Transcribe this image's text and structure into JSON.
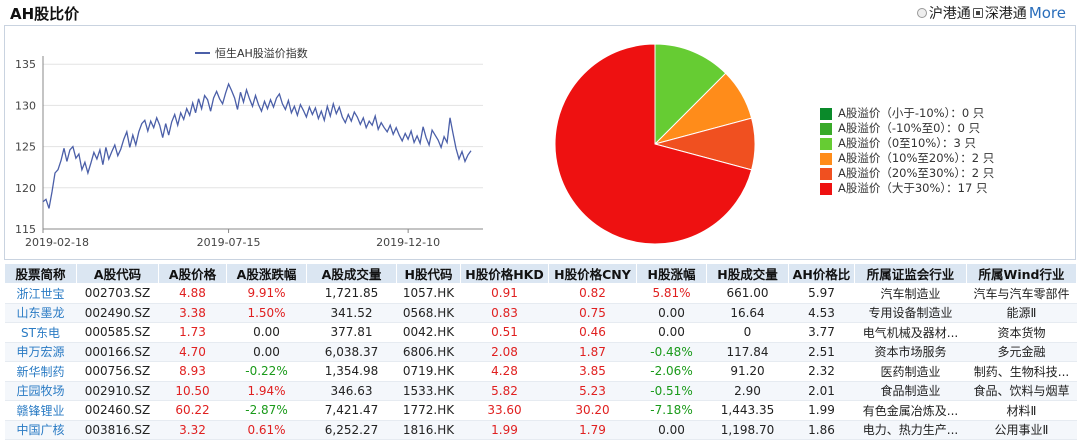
{
  "header": {
    "title": "AH股比价",
    "radio_options": [
      {
        "label": "沪港通",
        "selected": false
      },
      {
        "label": "深港通",
        "selected": true
      }
    ],
    "more_label": "More"
  },
  "chart_data": [
    {
      "type": "line",
      "series": [
        {
          "name": "恒生AH股溢价指数"
        }
      ],
      "x_ticks": [
        "2019-02-18",
        "2019-07-15",
        "2019-12-10"
      ],
      "y_ticks": [
        115,
        120,
        125,
        130,
        135
      ],
      "ylim": [
        115,
        136
      ],
      "grid": true,
      "legend_position": "top",
      "colors": {
        "line": "#4b5fa8",
        "grid": "#e3e3e3"
      },
      "points": [
        118.3,
        118.6,
        117.5,
        119.5,
        121.8,
        122.2,
        123.3,
        124.8,
        123.2,
        124.6,
        125.0,
        123.6,
        124.1,
        122.2,
        123.1,
        121.8,
        123.0,
        124.3,
        123.5,
        124.6,
        122.8,
        124.9,
        123.5,
        124.4,
        125.2,
        123.9,
        124.7,
        125.9,
        126.8,
        124.9,
        126.4,
        125.2,
        126.8,
        127.8,
        128.2,
        126.9,
        128.1,
        127.3,
        128.5,
        127.6,
        126.1,
        127.8,
        126.4,
        128.0,
        128.9,
        127.6,
        129.1,
        128.3,
        129.6,
        128.8,
        130.3,
        129.1,
        130.8,
        129.6,
        131.2,
        130.7,
        129.3,
        130.9,
        131.7,
        130.8,
        130.2,
        131.5,
        132.6,
        131.8,
        130.9,
        129.5,
        131.6,
        130.4,
        131.9,
        130.8,
        129.9,
        131.2,
        130.1,
        129.3,
        130.5,
        129.6,
        130.7,
        129.8,
        130.9,
        131.4,
        130.2,
        129.5,
        130.6,
        129.1,
        129.9,
        128.8,
        130.1,
        129.4,
        128.6,
        129.8,
        128.9,
        129.7,
        128.4,
        129.3,
        128.2,
        129.9,
        128.7,
        130.2,
        129.0,
        129.8,
        128.6,
        127.9,
        128.9,
        128.1,
        129.2,
        128.6,
        127.7,
        128.5,
        127.3,
        128.1,
        127.6,
        128.7,
        127.1,
        127.9,
        127.3,
        126.8,
        127.6,
        126.5,
        127.3,
        126.4,
        125.7,
        126.6,
        125.9,
        126.9,
        125.5,
        126.3,
        125.4,
        127.4,
        126.1,
        125.2,
        127.0,
        126.4,
        125.8,
        124.9,
        126.2,
        125.5,
        128.5,
        126.6,
        124.8,
        123.5,
        124.4,
        123.2,
        124.0,
        124.5
      ],
      "colors_pie": null
    },
    {
      "type": "pie",
      "categories": [
        "A股溢价（小于-10%）",
        "A股溢价（-10%至0）",
        "A股溢价（0至10%）",
        "A股溢价（10%至20%）",
        "A股溢价（20%至30%）",
        "A股溢价（大于30%）"
      ],
      "values": [
        0,
        0,
        3,
        2,
        2,
        17
      ],
      "colors": [
        "#0a8a2a",
        "#3aaa2a",
        "#66cc33",
        "#ff8c1a",
        "#f05020",
        "#ee1111"
      ],
      "legend": [
        {
          "label": "A股溢价（小于-10%）：0 只"
        },
        {
          "label": "A股溢价（-10%至0）：0 只"
        },
        {
          "label": "A股溢价（0至10%）：3 只"
        },
        {
          "label": "A股溢价（10%至20%）：2 只"
        },
        {
          "label": "A股溢价（20%至30%）：2 只"
        },
        {
          "label": "A股溢价（大于30%）：17 只"
        }
      ],
      "legend_position": "right"
    }
  ],
  "table": {
    "columns": [
      "股票简称",
      "A股代码",
      "A股价格",
      "A股涨跌幅",
      "A股成交量",
      "H股代码",
      "H股价格HKD",
      "H股价格CNY",
      "H股涨幅",
      "H股成交量",
      "AH价格比",
      "所属证监会行业",
      "所属Wind行业"
    ],
    "rows": [
      [
        "浙江世宝",
        "002703.SZ",
        "4.88",
        "9.91%",
        "1,721.85",
        "1057.HK",
        "0.91",
        "0.82",
        "5.81%",
        "661.00",
        "5.97",
        "汽车制造业",
        "汽车与汽车零部件"
      ],
      [
        "山东墨龙",
        "002490.SZ",
        "3.38",
        "1.50%",
        "341.52",
        "0568.HK",
        "0.83",
        "0.75",
        "0.00",
        "16.64",
        "4.53",
        "专用设备制造业",
        "能源Ⅱ"
      ],
      [
        "ST东电",
        "000585.SZ",
        "1.73",
        "0.00",
        "377.81",
        "0042.HK",
        "0.51",
        "0.46",
        "0.00",
        "0",
        "3.77",
        "电气机械及器材...",
        "资本货物"
      ],
      [
        "申万宏源",
        "000166.SZ",
        "4.70",
        "0.00",
        "6,038.37",
        "6806.HK",
        "2.08",
        "1.87",
        "-0.48%",
        "117.84",
        "2.51",
        "资本市场服务",
        "多元金融"
      ],
      [
        "新华制药",
        "000756.SZ",
        "8.93",
        "-0.22%",
        "1,354.98",
        "0719.HK",
        "4.28",
        "3.85",
        "-2.06%",
        "91.20",
        "2.32",
        "医药制造业",
        "制药、生物科技..."
      ],
      [
        "庄园牧场",
        "002910.SZ",
        "10.50",
        "1.94%",
        "346.63",
        "1533.HK",
        "5.82",
        "5.23",
        "-0.51%",
        "2.90",
        "2.01",
        "食品制造业",
        "食品、饮料与烟草"
      ],
      [
        "赣锋锂业",
        "002460.SZ",
        "60.22",
        "-2.87%",
        "7,421.47",
        "1772.HK",
        "33.60",
        "30.20",
        "-7.18%",
        "1,443.35",
        "1.99",
        "有色金属冶炼及...",
        "材料Ⅱ"
      ],
      [
        "中国广核",
        "003816.SZ",
        "3.32",
        "0.61%",
        "6,252.27",
        "1816.HK",
        "1.99",
        "1.79",
        "0.00",
        "1,198.70",
        "1.86",
        "电力、热力生产...",
        "公用事业Ⅱ"
      ]
    ]
  }
}
